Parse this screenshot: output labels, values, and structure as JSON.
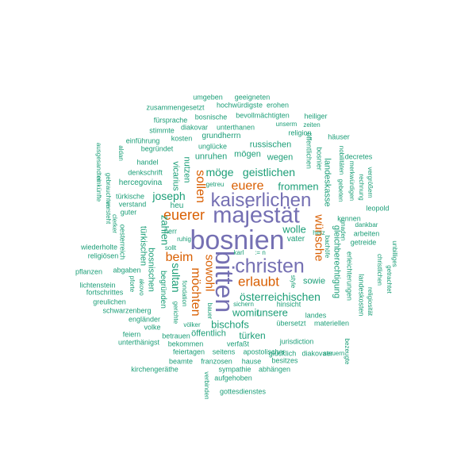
{
  "palette": {
    "purple": "#7570b3",
    "orange": "#d95f02",
    "green": "#1b9e77"
  },
  "words": [
    {
      "id": "bosnien",
      "text": "bosnien",
      "color": "purple"
    },
    {
      "id": "bitten",
      "text": "bitten",
      "color": "purple"
    },
    {
      "id": "majestat",
      "text": "majestät",
      "color": "purple"
    },
    {
      "id": "kaiserlichen",
      "text": "kaiserlichen",
      "color": "purple"
    },
    {
      "id": "christen",
      "text": "christen",
      "color": "purple"
    },
    {
      "id": "euerer",
      "text": "euerer",
      "color": "orange"
    },
    {
      "id": "erlaubt",
      "text": "erlaubt",
      "color": "orange"
    },
    {
      "id": "euere",
      "text": "euere",
      "color": "orange"
    },
    {
      "id": "sollen",
      "text": "sollen",
      "color": "orange"
    },
    {
      "id": "beim",
      "text": "beim",
      "color": "orange"
    },
    {
      "id": "mochten",
      "text": "möchten",
      "color": "orange"
    },
    {
      "id": "wunsche",
      "text": "wünsche",
      "color": "orange"
    },
    {
      "id": "sowohl",
      "text": "sowohl",
      "color": "orange"
    },
    {
      "id": "joseph",
      "text": "joseph",
      "color": "green"
    },
    {
      "id": "moge",
      "text": "möge",
      "color": "green"
    },
    {
      "id": "geistlichen",
      "text": "geistlichen",
      "color": "green"
    },
    {
      "id": "frommen",
      "text": "frommen",
      "color": "green"
    },
    {
      "id": "sultan",
      "text": "sultan",
      "color": "green"
    },
    {
      "id": "osterreichischen",
      "text": "österreichischen",
      "color": "green"
    },
    {
      "id": "bischofs",
      "text": "bischofs",
      "color": "green"
    },
    {
      "id": "womit",
      "text": "womit",
      "color": "green"
    },
    {
      "id": "unsere",
      "text": "unsere",
      "color": "green"
    },
    {
      "id": "wolle",
      "text": "wolle",
      "color": "green"
    },
    {
      "id": "sowie",
      "text": "sowie",
      "color": "green"
    },
    {
      "id": "vater",
      "text": "vater",
      "color": "green"
    },
    {
      "id": "hinsicht",
      "text": "hinsicht",
      "color": "green"
    },
    {
      "id": "sichern",
      "text": "sichern",
      "color": "green"
    },
    {
      "id": "russischen",
      "text": "russischen",
      "color": "green"
    },
    {
      "id": "mogen",
      "text": "mögen",
      "color": "green"
    },
    {
      "id": "wegen",
      "text": "wegen",
      "color": "green"
    },
    {
      "id": "unruhen",
      "text": "unruhen",
      "color": "green"
    },
    {
      "id": "nutzen",
      "text": "nutzen",
      "color": "green"
    },
    {
      "id": "vicarius",
      "text": "vicarius",
      "color": "green"
    },
    {
      "id": "zahlen",
      "text": "zahlen",
      "color": "green"
    },
    {
      "id": "bosnischen",
      "text": "bosnischen",
      "color": "green"
    },
    {
      "id": "turkischen",
      "text": "türkischen",
      "color": "green"
    },
    {
      "id": "heu",
      "text": "heu",
      "color": "green"
    },
    {
      "id": "herr",
      "text": "herr",
      "color": "green"
    },
    {
      "id": "ruhig",
      "text": "ruhig",
      "color": "green"
    },
    {
      "id": "sollt",
      "text": "sollt",
      "color": "green"
    },
    {
      "id": "karl",
      "text": "karl",
      "color": "green"
    },
    {
      "id": "eqn",
      "text": ":= n",
      "color": "green"
    },
    {
      "id": "fondation",
      "text": "fondation",
      "color": "green"
    },
    {
      "id": "gerichte",
      "text": "gerichte",
      "color": "green"
    },
    {
      "id": "begrunden",
      "text": "begründen",
      "color": "green"
    },
    {
      "id": "hercegovina",
      "text": "hercegovina",
      "color": "green"
    },
    {
      "id": "verstand",
      "text": "verstand",
      "color": "green"
    },
    {
      "id": "guter",
      "text": "guter",
      "color": "green"
    },
    {
      "id": "turkische",
      "text": "türkische",
      "color": "green"
    },
    {
      "id": "denkschrift",
      "text": "denkschrift",
      "color": "green"
    },
    {
      "id": "handel",
      "text": "handel",
      "color": "green"
    },
    {
      "id": "begrundet",
      "text": "begründet",
      "color": "green"
    },
    {
      "id": "einfuhrung",
      "text": "einführung",
      "color": "green"
    },
    {
      "id": "stimmte",
      "text": "stimmte",
      "color": "green"
    },
    {
      "id": "kosten",
      "text": "kosten",
      "color": "green"
    },
    {
      "id": "unglucke",
      "text": "unglücke",
      "color": "green"
    },
    {
      "id": "grundherrn",
      "text": "grundherrn",
      "color": "green"
    },
    {
      "id": "diakovar",
      "text": "diakovar",
      "color": "green"
    },
    {
      "id": "unterthanen",
      "text": "unterthanen",
      "color": "green"
    },
    {
      "id": "fursprache",
      "text": "fürsprache",
      "color": "green"
    },
    {
      "id": "bosnische",
      "text": "bosnische",
      "color": "green"
    },
    {
      "id": "bevollmachtigten",
      "text": "bevollmächtigten",
      "color": "green"
    },
    {
      "id": "heiliger",
      "text": "heiliger",
      "color": "green"
    },
    {
      "id": "zusammengesetzt",
      "text": "zusammengesetzt",
      "color": "green"
    },
    {
      "id": "hochwurdigste",
      "text": "hochwürdigste",
      "color": "green"
    },
    {
      "id": "erohen",
      "text": "erohen",
      "color": "green"
    },
    {
      "id": "umgeben",
      "text": "umgeben",
      "color": "green"
    },
    {
      "id": "geeigneten",
      "text": "geeigneten",
      "color": "green"
    },
    {
      "id": "unserm",
      "text": "unserm",
      "color": "green"
    },
    {
      "id": "zeiten",
      "text": "zeiten",
      "color": "green"
    },
    {
      "id": "religion",
      "text": "religion",
      "color": "green"
    },
    {
      "id": "hauser",
      "text": "häuser",
      "color": "green"
    },
    {
      "id": "offentlichen",
      "text": "öffentlichen",
      "color": "green"
    },
    {
      "id": "bosnier",
      "text": "bosnier",
      "color": "green"
    },
    {
      "id": "nobilitaten",
      "text": "nobilitäten",
      "color": "green"
    },
    {
      "id": "decretes",
      "text": "decretes",
      "color": "green"
    },
    {
      "id": "merkwurdigen",
      "text": "merkwürdigen",
      "color": "green"
    },
    {
      "id": "rechnung",
      "text": "rechnung",
      "color": "green"
    },
    {
      "id": "vergrossern",
      "text": "vergrößern",
      "color": "green"
    },
    {
      "id": "leopold",
      "text": "leopold",
      "color": "green"
    },
    {
      "id": "landeskasse",
      "text": "landeskasse",
      "color": "green"
    },
    {
      "id": "gebeten",
      "text": "gebeten",
      "color": "green"
    },
    {
      "id": "gnaden",
      "text": "gnaden",
      "color": "green"
    },
    {
      "id": "kennen",
      "text": "kennen",
      "color": "green"
    },
    {
      "id": "dankbar",
      "text": "dankbar",
      "color": "green"
    },
    {
      "id": "arbeiten",
      "text": "arbeiten",
      "color": "green"
    },
    {
      "id": "getreide",
      "text": "getreide",
      "color": "green"
    },
    {
      "id": "bachofe",
      "text": "bachöfe",
      "color": "green"
    },
    {
      "id": "herz",
      "text": "herz",
      "color": "green"
    },
    {
      "id": "gleichberechtigung",
      "text": "gleichberechtigung",
      "color": "green"
    },
    {
      "id": "erleichterungen",
      "text": "erleichterungen",
      "color": "green"
    },
    {
      "id": "landeskosten",
      "text": "landeskosten",
      "color": "green"
    },
    {
      "id": "religiositat",
      "text": "religiosität",
      "color": "green"
    },
    {
      "id": "christlichen",
      "text": "christlichen",
      "color": "green"
    },
    {
      "id": "getrachtet",
      "text": "getrachtet",
      "color": "green"
    },
    {
      "id": "unbilliges",
      "text": "unbilliges",
      "color": "green"
    },
    {
      "id": "landes",
      "text": "landes",
      "color": "green"
    },
    {
      "id": "ubersetzt",
      "text": "übersetzt",
      "color": "green"
    },
    {
      "id": "materiellen",
      "text": "materiellen",
      "color": "green"
    },
    {
      "id": "jurisdiction",
      "text": "jurisdiction",
      "color": "green"
    },
    {
      "id": "glucklich",
      "text": "glücklich",
      "color": "green"
    },
    {
      "id": "diakovaer",
      "text": "diakovaer",
      "color": "green"
    },
    {
      "id": "steuern",
      "text": "steuern",
      "color": "green"
    },
    {
      "id": "bezeugte",
      "text": "bezeugte",
      "color": "green"
    },
    {
      "id": "style",
      "text": "style",
      "color": "green"
    },
    {
      "id": "turken",
      "text": "türken",
      "color": "green"
    },
    {
      "id": "verfasst",
      "text": "verfaßt",
      "color": "green"
    },
    {
      "id": "offentlich",
      "text": "öffentlich",
      "color": "green"
    },
    {
      "id": "volker",
      "text": "völker",
      "color": "green"
    },
    {
      "id": "bauer",
      "text": "bauer",
      "color": "green"
    },
    {
      "id": "betrauen",
      "text": "betrauen",
      "color": "green"
    },
    {
      "id": "bekommen",
      "text": "bekommen",
      "color": "green"
    },
    {
      "id": "feiertagen",
      "text": "feiertagen",
      "color": "green"
    },
    {
      "id": "seitens",
      "text": "seitens",
      "color": "green"
    },
    {
      "id": "apostolischer",
      "text": "apostolischer",
      "color": "green"
    },
    {
      "id": "beamte",
      "text": "beamte",
      "color": "green"
    },
    {
      "id": "franzosen",
      "text": "franzosen",
      "color": "green"
    },
    {
      "id": "hause",
      "text": "hause",
      "color": "green"
    },
    {
      "id": "besitzes",
      "text": "besitzes",
      "color": "green"
    },
    {
      "id": "sympathie",
      "text": "sympathie",
      "color": "green"
    },
    {
      "id": "abhangen",
      "text": "abhängen",
      "color": "green"
    },
    {
      "id": "aufgehoben",
      "text": "aufgehoben",
      "color": "green"
    },
    {
      "id": "gottesdienstes",
      "text": "gottesdienstes",
      "color": "green"
    },
    {
      "id": "verbinden",
      "text": "verbinden",
      "color": "green"
    },
    {
      "id": "kirchengerathe",
      "text": "kirchengeräthe",
      "color": "green"
    },
    {
      "id": "unterthanigst",
      "text": "unterthänigst",
      "color": "green"
    },
    {
      "id": "feiern",
      "text": "feiern",
      "color": "green"
    },
    {
      "id": "volke",
      "text": "volke",
      "color": "green"
    },
    {
      "id": "englander",
      "text": "engländer",
      "color": "green"
    },
    {
      "id": "greulichen",
      "text": "greulichen",
      "color": "green"
    },
    {
      "id": "schwarzenberg",
      "text": "schwarzenberg",
      "color": "green"
    },
    {
      "id": "fortschrittes",
      "text": "fortschrittes",
      "color": "green"
    },
    {
      "id": "lichtenstein",
      "text": "lichtenstein",
      "color": "green"
    },
    {
      "id": "pflanzen",
      "text": "pflanzen",
      "color": "green"
    },
    {
      "id": "abgaben",
      "text": "abgaben",
      "color": "green"
    },
    {
      "id": "pforte",
      "text": "pforte",
      "color": "green"
    },
    {
      "id": "akovo",
      "text": "akovo",
      "color": "green"
    },
    {
      "id": "wiederholte",
      "text": "wiederholte",
      "color": "green"
    },
    {
      "id": "religiosen",
      "text": "religiösen",
      "color": "green"
    },
    {
      "id": "oesterreich",
      "text": "oesterreich",
      "color": "green"
    },
    {
      "id": "clerker",
      "text": "clerker",
      "color": "green"
    },
    {
      "id": "verstehet",
      "text": "versteht",
      "color": "green"
    },
    {
      "id": "gebrauchten",
      "text": "gebrauchten",
      "color": "green"
    },
    {
      "id": "einkunfte",
      "text": "einkünfte",
      "color": "green"
    },
    {
      "id": "ausgesandten",
      "text": "ausgesandten",
      "color": "green"
    },
    {
      "id": "aldan",
      "text": "aldan",
      "color": "green"
    },
    {
      "id": "getreu",
      "text": "getreu",
      "color": "green"
    }
  ]
}
